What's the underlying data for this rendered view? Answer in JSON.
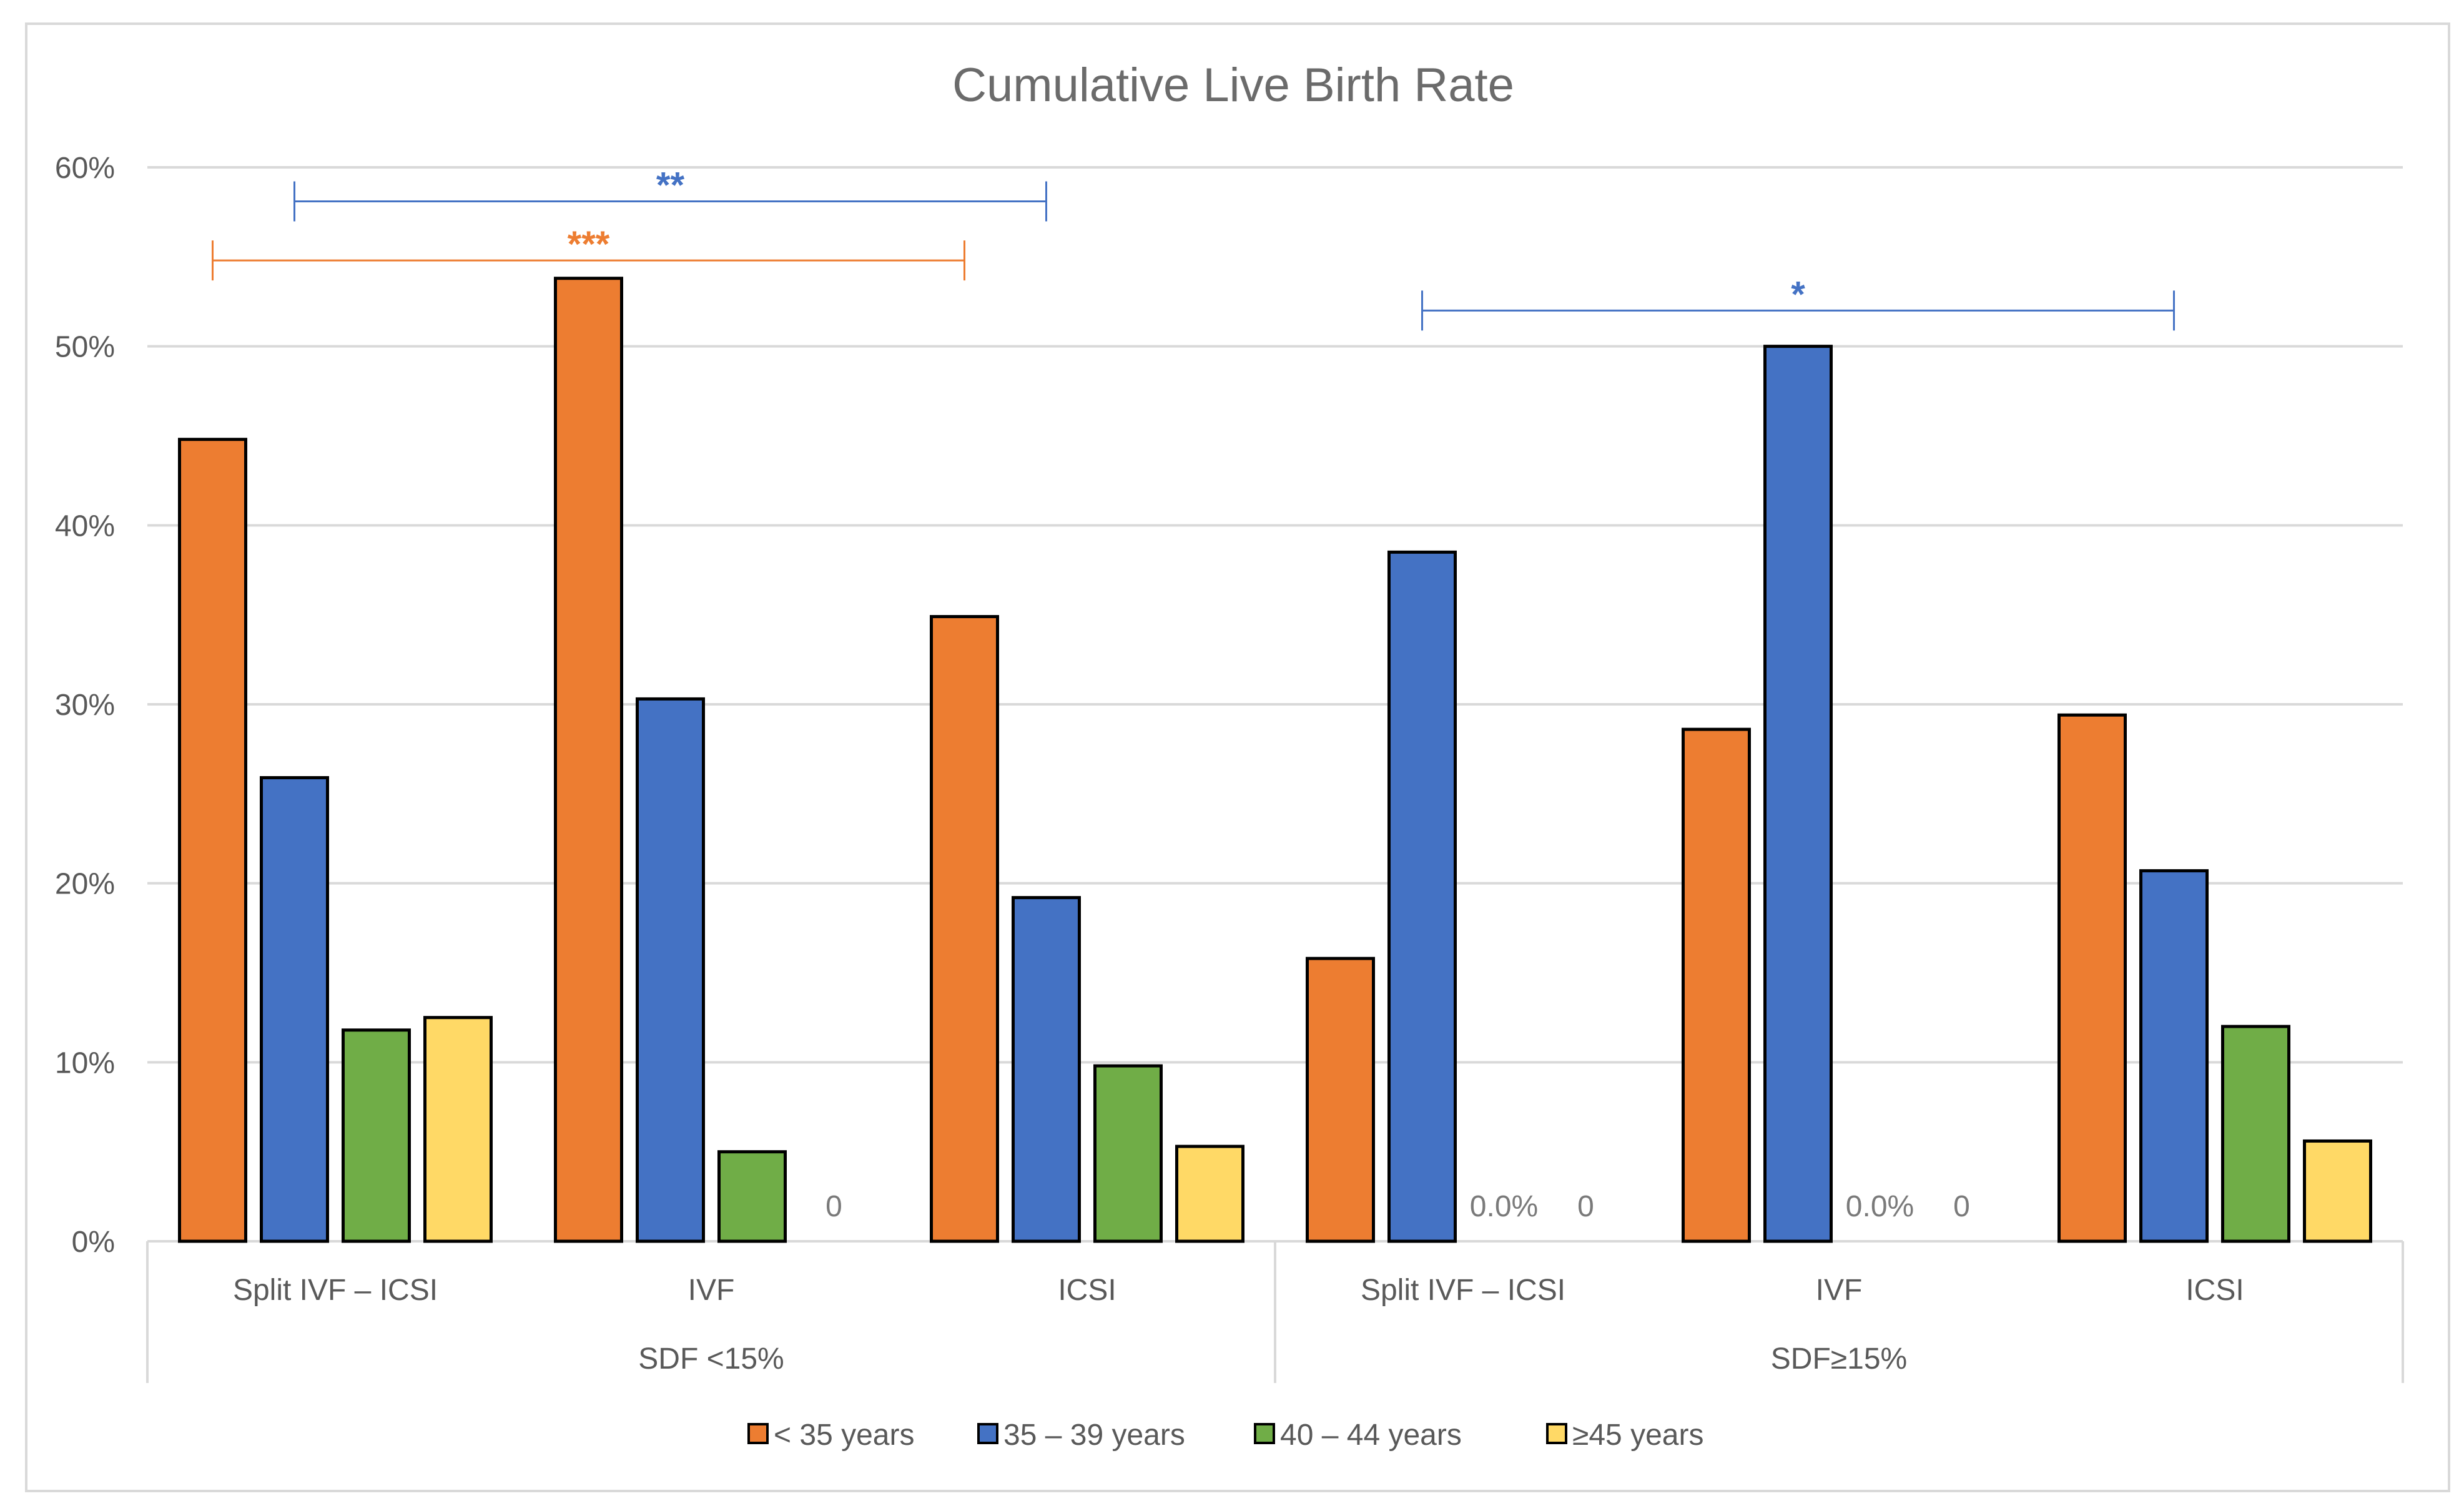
{
  "chart_data": {
    "type": "bar",
    "title": "Cumulative Live Birth Rate",
    "xlabel": "",
    "ylabel": "",
    "ylim": [
      0,
      60
    ],
    "yticks": [
      "0%",
      "10%",
      "20%",
      "30%",
      "40%",
      "50%",
      "60%"
    ],
    "grid": true,
    "groups": [
      {
        "label": "SDF <15%",
        "categories": [
          "Split IVF – ICSI",
          "IVF",
          "ICSI"
        ]
      },
      {
        "label": "SDF≥15%",
        "categories": [
          "Split IVF – ICSI",
          "IVF",
          "ICSI"
        ]
      }
    ],
    "categories": [
      "Split IVF – ICSI",
      "IVF",
      "ICSI",
      "Split IVF – ICSI",
      "IVF",
      "ICSI"
    ],
    "series": [
      {
        "name": "< 35 years",
        "color": "#ED7D31",
        "values": [
          44.8,
          53.8,
          34.9,
          15.8,
          28.6,
          29.4
        ]
      },
      {
        "name": "35 – 39 years",
        "color": "#4472C4",
        "values": [
          25.9,
          30.3,
          19.2,
          38.5,
          50.0,
          20.7
        ]
      },
      {
        "name": "40 –  44 years",
        "color": "#70AD47",
        "values": [
          11.8,
          5.0,
          9.8,
          0.0,
          0.0,
          12.0
        ]
      },
      {
        "name": "≥45 years",
        "color": "#FFD966",
        "values": [
          12.5,
          0,
          5.3,
          0,
          0,
          5.6
        ]
      }
    ],
    "data_labels": [
      {
        "category_index": 1,
        "series_index": 3,
        "text": "0"
      },
      {
        "category_index": 3,
        "series_index": 2,
        "text": "0.0%"
      },
      {
        "category_index": 3,
        "series_index": 3,
        "text": "0"
      },
      {
        "category_index": 4,
        "series_index": 2,
        "text": "0.0%"
      },
      {
        "category_index": 4,
        "series_index": 3,
        "text": "0"
      }
    ],
    "significance": [
      {
        "text": "**",
        "color": "#4472C4",
        "from": {
          "category_index": 0,
          "series_index": 1
        },
        "to": {
          "category_index": 2,
          "series_index": 1
        }
      },
      {
        "text": "***",
        "color": "#ED7D31",
        "from": {
          "category_index": 0,
          "series_index": 0
        },
        "to": {
          "category_index": 2,
          "series_index": 0
        }
      },
      {
        "text": "*",
        "color": "#4472C4",
        "from": {
          "category_index": 3,
          "series_index": 1
        },
        "to": {
          "category_index": 5,
          "series_index": 1
        }
      }
    ],
    "legend": {
      "position": "bottom"
    }
  }
}
